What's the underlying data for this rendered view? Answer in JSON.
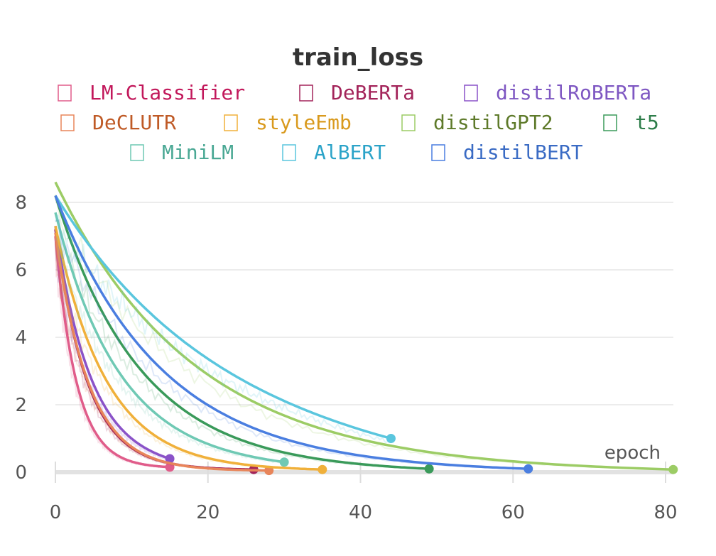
{
  "chart_data": {
    "type": "line",
    "title": "train_loss",
    "xlabel": "epoch",
    "ylabel": "",
    "xlim": [
      0,
      81
    ],
    "ylim": [
      0,
      8.6
    ],
    "x_ticks": [
      0,
      20,
      40,
      60,
      80
    ],
    "y_ticks": [
      0,
      2,
      4,
      6,
      8
    ],
    "grid": true,
    "legend_position": "top",
    "series": [
      {
        "name": "LM-Classifier",
        "color": "#e05c8a",
        "start": 7.0,
        "end": 15,
        "end_value": 0.15,
        "rate": 0.36
      },
      {
        "name": "DeBERTa",
        "color": "#a3245a",
        "start": 7.2,
        "end": 26,
        "end_value": 0.08,
        "rate": 0.24
      },
      {
        "name": "distilRoBERTa",
        "color": "#8a52c8",
        "start": 7.3,
        "end": 15,
        "end_value": 0.4,
        "rate": 0.22
      },
      {
        "name": "DeCLUTR",
        "color": "#e8855a",
        "start": 7.1,
        "end": 28,
        "end_value": 0.05,
        "rate": 0.23
      },
      {
        "name": "styleEmb",
        "color": "#f0b03a",
        "start": 7.3,
        "end": 35,
        "end_value": 0.08,
        "rate": 0.15
      },
      {
        "name": "distilGPT2",
        "color": "#9ccc65",
        "start": 8.6,
        "end": 81,
        "end_value": 0.08,
        "rate": 0.055
      },
      {
        "name": "t5",
        "color": "#3a9a5a",
        "start": 8.2,
        "end": 49,
        "end_value": 0.1,
        "rate": 0.09
      },
      {
        "name": "MiniLM",
        "color": "#6fc9b4",
        "start": 7.7,
        "end": 30,
        "end_value": 0.3,
        "rate": 0.12
      },
      {
        "name": "AlBERT",
        "color": "#5ac6de",
        "start": 8.2,
        "end": 44,
        "end_value": 1.0,
        "rate": 0.048
      },
      {
        "name": "distilBERT",
        "color": "#4a7ee0",
        "start": 8.2,
        "end": 62,
        "end_value": 0.1,
        "rate": 0.072
      }
    ]
  },
  "legend_rows": [
    [
      {
        "label": "LM-Classifier",
        "color": "#e05c8a",
        "text_color": "#c2185b"
      },
      {
        "label": "DeBERTa",
        "color": "#a3245a",
        "text_color": "#a3245a"
      },
      {
        "label": "distilRoBERTa",
        "color": "#8a52c8",
        "text_color": "#7e57c2"
      }
    ],
    [
      {
        "label": "DeCLUTR",
        "color": "#e8855a",
        "text_color": "#bf5a26"
      },
      {
        "label": "styleEmb",
        "color": "#f0b03a",
        "text_color": "#d99a1e"
      },
      {
        "label": "distilGPT2",
        "color": "#9ccc65",
        "text_color": "#5e7a2a"
      },
      {
        "label": "t5",
        "color": "#3a9a5a",
        "text_color": "#2e7d4a"
      }
    ],
    [
      {
        "label": "MiniLM",
        "color": "#6fc9b4",
        "text_color": "#4aa894"
      },
      {
        "label": "AlBERT",
        "color": "#5ac6de",
        "text_color": "#2ba3c8"
      },
      {
        "label": "distilBERT",
        "color": "#4a7ee0",
        "text_color": "#3a6bc4"
      }
    ]
  ],
  "legend_glyph": "□"
}
